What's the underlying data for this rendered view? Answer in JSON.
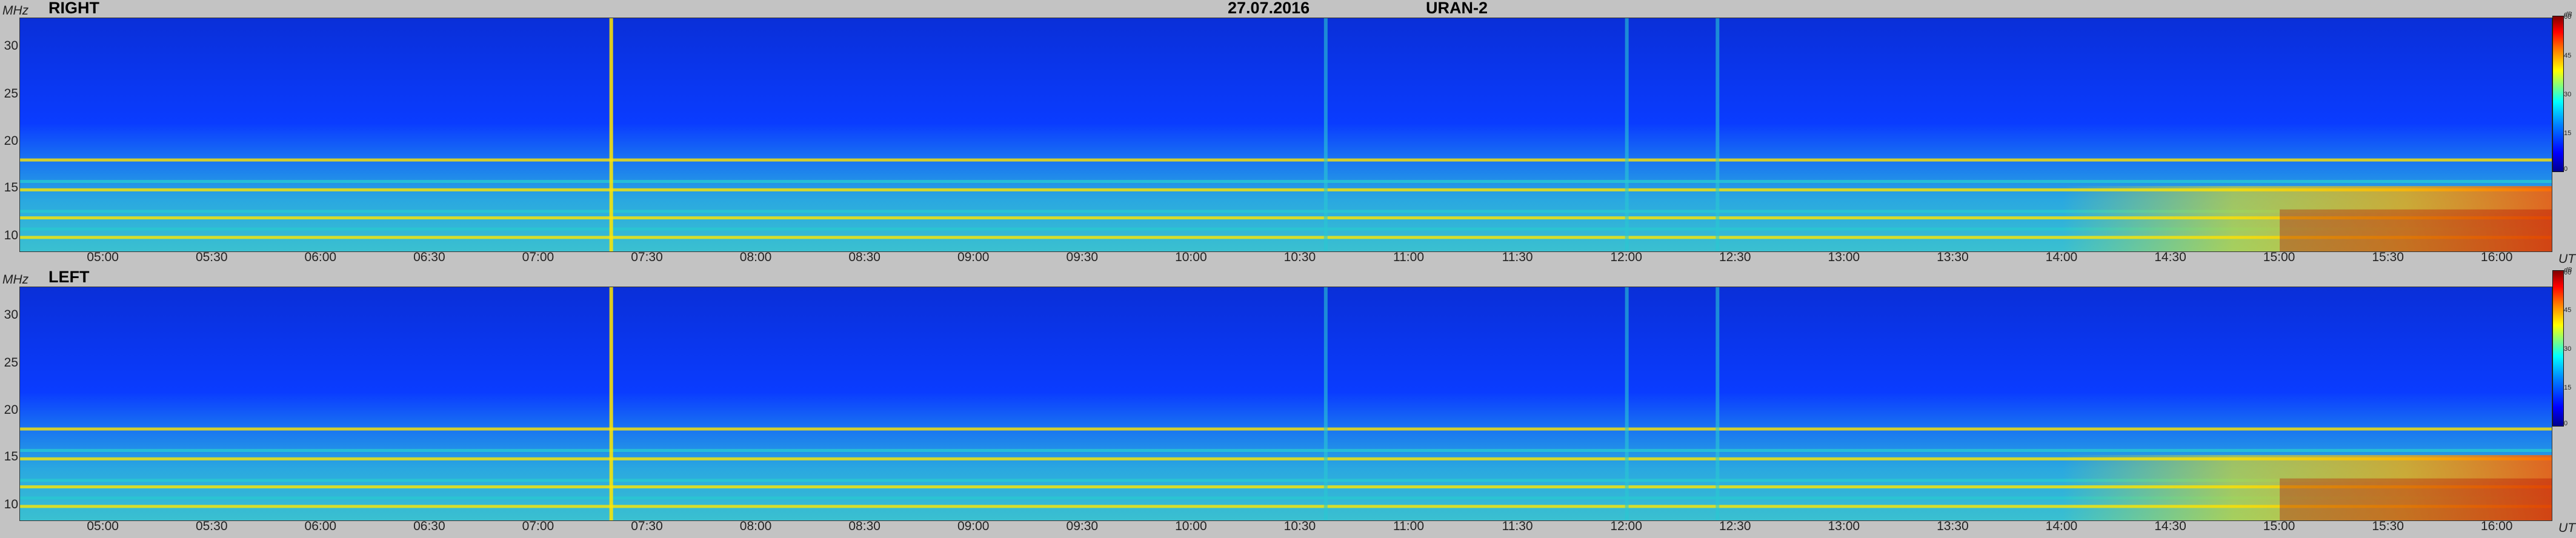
{
  "header": {
    "date": "27.07.2016",
    "instrument": "URAN-2"
  },
  "colors": {
    "background": "#c3c3c3",
    "low": "#0a3cff",
    "mid": "#28c8d2",
    "high": "#ffe600",
    "max": "#b40000"
  },
  "chart_data": [
    {
      "type": "heatmap",
      "title": "RIGHT",
      "ylabel": "MHz",
      "xlabel": "UT",
      "yticks": [
        "30",
        "25",
        "20",
        "15",
        "10"
      ],
      "ytick_values": [
        30,
        25,
        20,
        15,
        10
      ],
      "xticks": [
        "05:00",
        "05:30",
        "06:00",
        "06:30",
        "07:00",
        "07:30",
        "08:00",
        "08:30",
        "09:00",
        "09:30",
        "10:00",
        "10:30",
        "11:00",
        "11:30",
        "12:00",
        "12:30",
        "13:00",
        "13:30",
        "14:00",
        "14:30",
        "15:00",
        "15:30",
        "16:00"
      ],
      "x_range": [
        "04:37",
        "16:15"
      ],
      "ylim": [
        8,
        33
      ],
      "colorbar": {
        "unit": "dB",
        "ticks": [
          "60",
          "45",
          "30",
          "15",
          "0"
        ],
        "range": [
          0,
          60
        ]
      },
      "features": {
        "bands_mhz": [
          17.8,
          15.5,
          14.6,
          12.3,
          11.6,
          10.4,
          9.5
        ],
        "bursts_ut": [
          "07:20",
          "10:37",
          "12:00",
          "12:25"
        ],
        "enhanced_after": "14:00"
      }
    },
    {
      "type": "heatmap",
      "title": "LEFT",
      "ylabel": "MHz",
      "xlabel": "UT",
      "yticks": [
        "30",
        "25",
        "20",
        "15",
        "10"
      ],
      "ytick_values": [
        30,
        25,
        20,
        15,
        10
      ],
      "xticks": [
        "05:00",
        "05:30",
        "06:00",
        "06:30",
        "07:00",
        "07:30",
        "08:00",
        "08:30",
        "09:00",
        "09:30",
        "10:00",
        "10:30",
        "11:00",
        "11:30",
        "12:00",
        "12:30",
        "13:00",
        "13:30",
        "14:00",
        "14:30",
        "15:00",
        "15:30",
        "16:00"
      ],
      "x_range": [
        "04:37",
        "16:15"
      ],
      "ylim": [
        8,
        33
      ],
      "colorbar": {
        "unit": "dB",
        "ticks": [
          "60",
          "45",
          "30",
          "15",
          "0"
        ],
        "range": [
          0,
          60
        ]
      },
      "features": {
        "bands_mhz": [
          17.8,
          15.5,
          14.6,
          12.3,
          11.6,
          10.4,
          9.5
        ],
        "bursts_ut": [
          "07:20",
          "10:37",
          "12:00",
          "12:25"
        ],
        "enhanced_after": "14:00"
      }
    }
  ]
}
